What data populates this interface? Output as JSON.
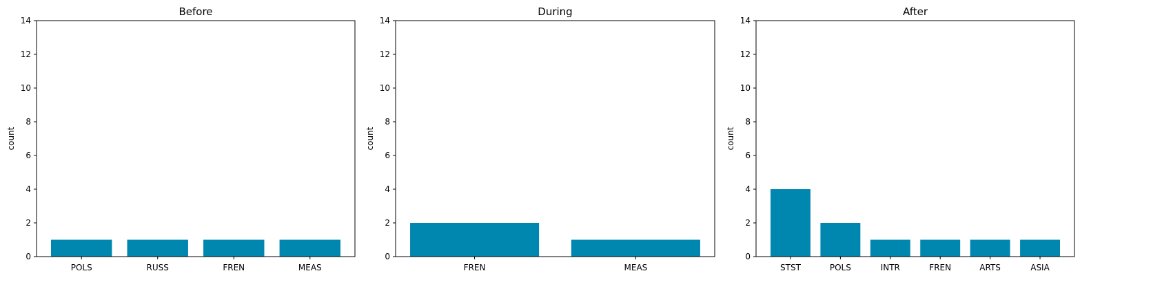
{
  "chart_data": [
    {
      "type": "bar",
      "title": "Before",
      "xlabel": "",
      "ylabel": "count",
      "ylim": [
        0,
        14
      ],
      "yticks": [
        0,
        2,
        4,
        6,
        8,
        10,
        12,
        14
      ],
      "categories": [
        "POLS",
        "RUSS",
        "FREN",
        "MEAS"
      ],
      "values": [
        1,
        1,
        1,
        1
      ],
      "color": "#0087b0",
      "grid": false
    },
    {
      "type": "bar",
      "title": "During",
      "xlabel": "",
      "ylabel": "count",
      "ylim": [
        0,
        14
      ],
      "yticks": [
        0,
        2,
        4,
        6,
        8,
        10,
        12,
        14
      ],
      "categories": [
        "FREN",
        "MEAS"
      ],
      "values": [
        2,
        1
      ],
      "color": "#0087b0",
      "grid": false
    },
    {
      "type": "bar",
      "title": "After",
      "xlabel": "",
      "ylabel": "count",
      "ylim": [
        0,
        14
      ],
      "yticks": [
        0,
        2,
        4,
        6,
        8,
        10,
        12,
        14
      ],
      "categories": [
        "STST",
        "POLS",
        "INTR",
        "FREN",
        "ARTS",
        "ASIA"
      ],
      "values": [
        4,
        2,
        1,
        1,
        1,
        1
      ],
      "color": "#0087b0",
      "grid": false
    }
  ]
}
